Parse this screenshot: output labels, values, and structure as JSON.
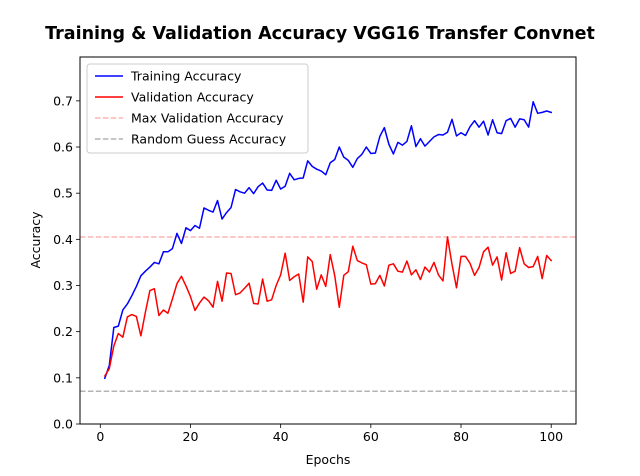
{
  "chart_data": {
    "type": "line",
    "title": "Training & Validation Accuracy VGG16 Transfer Convnet",
    "xlabel": "Epochs",
    "ylabel": "Accuracy",
    "xlim": [
      -4.5,
      105.5
    ],
    "ylim": [
      0.0,
      0.795
    ],
    "xticks": [
      0,
      20,
      40,
      60,
      80,
      100
    ],
    "xtick_labels": [
      "0",
      "20",
      "40",
      "60",
      "80",
      "100"
    ],
    "yticks": [
      0.0,
      0.1,
      0.2,
      0.3,
      0.4,
      0.5,
      0.6,
      0.7
    ],
    "ytick_labels": [
      "0.0",
      "0.1",
      "0.2",
      "0.3",
      "0.4",
      "0.5",
      "0.6",
      "0.7"
    ],
    "grid": false,
    "legend_position": "top-left",
    "x": [
      1,
      2,
      3,
      4,
      5,
      6,
      7,
      8,
      9,
      10,
      11,
      12,
      13,
      14,
      15,
      16,
      17,
      18,
      19,
      20,
      21,
      22,
      23,
      24,
      25,
      26,
      27,
      28,
      29,
      30,
      31,
      32,
      33,
      34,
      35,
      36,
      37,
      38,
      39,
      40,
      41,
      42,
      43,
      44,
      45,
      46,
      47,
      48,
      49,
      50,
      51,
      52,
      53,
      54,
      55,
      56,
      57,
      58,
      59,
      60,
      61,
      62,
      63,
      64,
      65,
      66,
      67,
      68,
      69,
      70,
      71,
      72,
      73,
      74,
      75,
      76,
      77,
      78,
      79,
      80,
      81,
      82,
      83,
      84,
      85,
      86,
      87,
      88,
      89,
      90,
      91,
      92,
      93,
      94,
      95,
      96,
      97,
      98,
      99,
      100
    ],
    "series": [
      {
        "name": "Training Accuracy",
        "color": "#0000ff",
        "style": "solid",
        "values": [
          0.099,
          0.127,
          0.209,
          0.212,
          0.247,
          0.26,
          0.278,
          0.298,
          0.321,
          0.331,
          0.34,
          0.35,
          0.347,
          0.373,
          0.373,
          0.38,
          0.413,
          0.391,
          0.425,
          0.419,
          0.43,
          0.424,
          0.468,
          0.463,
          0.459,
          0.484,
          0.444,
          0.458,
          0.469,
          0.508,
          0.503,
          0.5,
          0.512,
          0.499,
          0.514,
          0.522,
          0.507,
          0.506,
          0.528,
          0.509,
          0.515,
          0.543,
          0.529,
          0.532,
          0.533,
          0.57,
          0.558,
          0.552,
          0.548,
          0.54,
          0.566,
          0.573,
          0.6,
          0.578,
          0.571,
          0.556,
          0.575,
          0.584,
          0.6,
          0.586,
          0.587,
          0.623,
          0.642,
          0.606,
          0.585,
          0.61,
          0.604,
          0.612,
          0.646,
          0.601,
          0.618,
          0.602,
          0.612,
          0.622,
          0.627,
          0.626,
          0.632,
          0.66,
          0.624,
          0.631,
          0.625,
          0.644,
          0.657,
          0.643,
          0.656,
          0.626,
          0.659,
          0.631,
          0.629,
          0.657,
          0.662,
          0.643,
          0.661,
          0.659,
          0.643,
          0.698,
          0.673,
          0.675,
          0.678,
          0.675
        ]
      },
      {
        "name": "Validation Accuracy",
        "color": "#ff0000",
        "style": "solid",
        "values": [
          0.104,
          0.12,
          0.169,
          0.196,
          0.188,
          0.232,
          0.237,
          0.233,
          0.191,
          0.242,
          0.289,
          0.293,
          0.235,
          0.247,
          0.24,
          0.271,
          0.304,
          0.32,
          0.299,
          0.276,
          0.246,
          0.262,
          0.275,
          0.267,
          0.253,
          0.309,
          0.266,
          0.327,
          0.326,
          0.28,
          0.284,
          0.294,
          0.305,
          0.261,
          0.26,
          0.314,
          0.266,
          0.269,
          0.3,
          0.323,
          0.37,
          0.311,
          0.319,
          0.325,
          0.264,
          0.362,
          0.352,
          0.292,
          0.323,
          0.298,
          0.367,
          0.321,
          0.253,
          0.322,
          0.33,
          0.385,
          0.354,
          0.349,
          0.345,
          0.303,
          0.304,
          0.322,
          0.299,
          0.344,
          0.347,
          0.331,
          0.329,
          0.353,
          0.323,
          0.334,
          0.313,
          0.34,
          0.329,
          0.35,
          0.323,
          0.31,
          0.405,
          0.346,
          0.295,
          0.363,
          0.363,
          0.348,
          0.322,
          0.339,
          0.373,
          0.383,
          0.344,
          0.362,
          0.312,
          0.371,
          0.326,
          0.331,
          0.382,
          0.347,
          0.339,
          0.341,
          0.363,
          0.315,
          0.365,
          0.354
        ]
      }
    ],
    "reference_lines": [
      {
        "name": "Max Validation Accuracy",
        "y": 0.405,
        "color": "#ff0000",
        "opacity": 0.3,
        "style": "dashed"
      },
      {
        "name": "Random Guess Accuracy",
        "y": 0.071,
        "color": "#808080",
        "opacity": 0.6,
        "style": "dashed"
      }
    ]
  }
}
